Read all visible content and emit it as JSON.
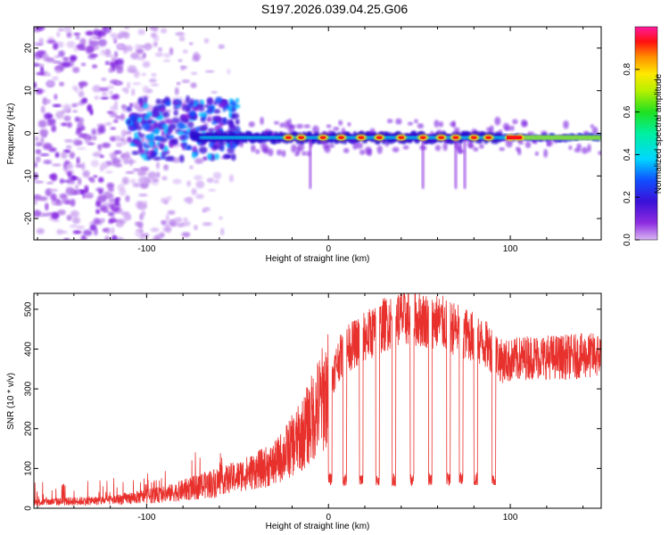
{
  "title": "S197.2026.039.04.25.G06",
  "chart_data": [
    {
      "type": "heatmap",
      "name": "spectrogram",
      "xlabel": "Height of straight line (km)",
      "ylabel": "Frequency (Hz)",
      "xlim": [
        -162,
        150
      ],
      "ylim": [
        -25,
        25
      ],
      "xticks": [
        -100,
        0,
        100
      ],
      "yticks": [
        -20,
        -10,
        0,
        10,
        20
      ],
      "colorbar": {
        "label": "Normalized spectral amplitude",
        "range": [
          0,
          1
        ],
        "ticks": [
          0.0,
          0.2,
          0.4,
          0.6,
          0.8
        ],
        "tick_labels": [
          "0.0",
          "0.2",
          "0.4",
          "0.6",
          "0.8"
        ]
      },
      "features": {
        "carrier_freq_hz": -1,
        "noise_region_km": [
          -162,
          -75
        ],
        "tone_region_km": [
          -75,
          150
        ],
        "strong_peaks_km": [
          -22,
          -15,
          -3,
          7,
          18,
          28,
          40,
          52,
          62,
          70,
          80,
          88,
          100,
          105
        ]
      }
    },
    {
      "type": "line",
      "name": "snr",
      "xlabel": "Height of straight line (km)",
      "ylabel": "SNR (10 * v/v)",
      "xlim": [
        -162,
        150
      ],
      "ylim": [
        0,
        540
      ],
      "xticks": [
        -100,
        0,
        100
      ],
      "yticks": [
        0,
        100,
        200,
        300,
        400,
        500
      ],
      "color": "#e8302c",
      "series": {
        "anchor_x": [
          -162,
          -120,
          -90,
          -70,
          -50,
          -30,
          -15,
          -5,
          0,
          5,
          10,
          20,
          30,
          40,
          50,
          60,
          70,
          80,
          90,
          95,
          100,
          110,
          130,
          150
        ],
        "anchor_y": [
          15,
          20,
          35,
          55,
          80,
          110,
          180,
          260,
          300,
          370,
          400,
          430,
          460,
          480,
          475,
          470,
          450,
          430,
          400,
          370,
          370,
          380,
          380,
          385
        ],
        "dropouts_km": [
          [
            0,
            2
          ],
          [
            8,
            10
          ],
          [
            17,
            19
          ],
          [
            26,
            28
          ],
          [
            35,
            37
          ],
          [
            45,
            47
          ],
          [
            55,
            57
          ],
          [
            65,
            67
          ],
          [
            72,
            74
          ],
          [
            80,
            82
          ],
          [
            90,
            92
          ]
        ]
      }
    }
  ]
}
